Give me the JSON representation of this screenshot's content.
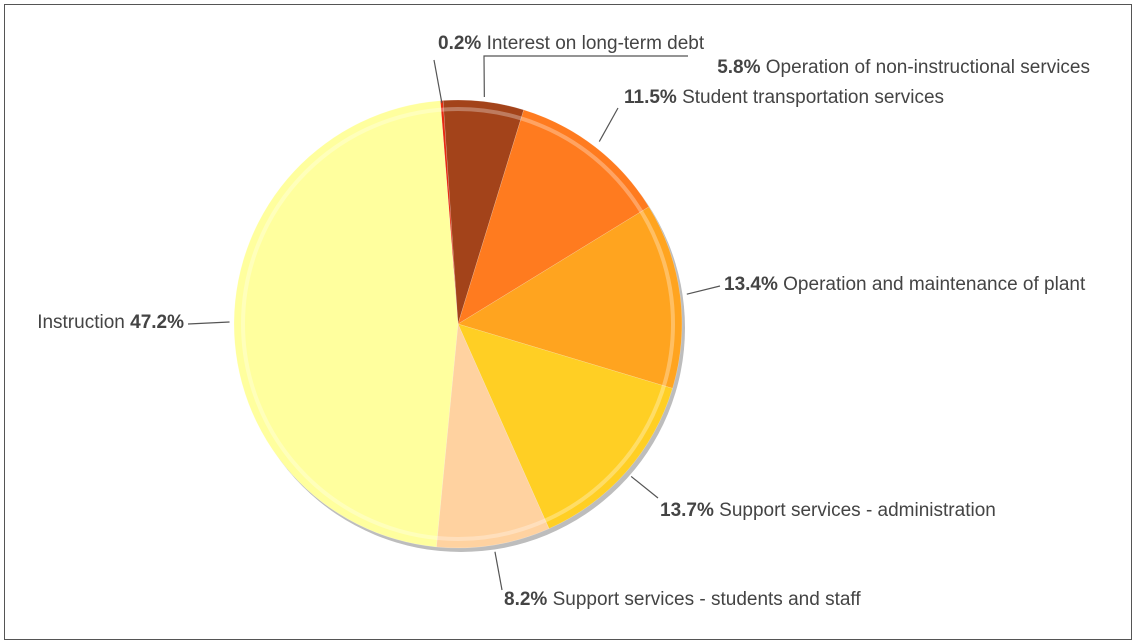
{
  "chart_data": {
    "type": "pie",
    "title": "",
    "legend": "none",
    "slices": [
      {
        "label": "Interest on long-term debt",
        "value": 0.2,
        "value_label": "0.2%",
        "color": "#e82a10"
      },
      {
        "label": "Operation of non-instructional services",
        "value": 5.8,
        "value_label": "5.8%",
        "color": "#a3431a"
      },
      {
        "label": "Student transportation services",
        "value": 11.5,
        "value_label": "11.5%",
        "color": "#ff7b1f"
      },
      {
        "label": "Operation and maintenance of plant",
        "value": 13.4,
        "value_label": "13.4%",
        "color": "#ffa41f"
      },
      {
        "label": "Support services - administration",
        "value": 13.7,
        "value_label": "13.7%",
        "color": "#ffcf24"
      },
      {
        "label": "Support services - students and staff",
        "value": 8.2,
        "value_label": "8.2%",
        "color": "#ffd2a0"
      },
      {
        "label": "Instruction",
        "value": 47.2,
        "value_label": "47.2%",
        "color": "#ffff9e"
      }
    ]
  }
}
